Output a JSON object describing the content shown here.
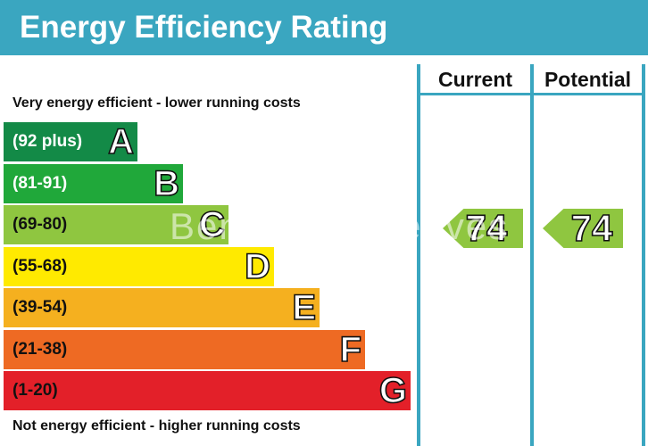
{
  "title": "Energy Efficiency Rating",
  "columns": {
    "current": "Current",
    "potential": "Potential"
  },
  "top_caption": "Very energy efficient - lower running costs",
  "bottom_caption": "Not energy efficient - higher running costs",
  "watermark": "Benham & Reeves",
  "chart_data": {
    "type": "bar",
    "categories": [
      "A",
      "B",
      "C",
      "D",
      "E",
      "F",
      "G"
    ],
    "ranges": [
      "(92 plus)",
      "(81-91)",
      "(69-80)",
      "(55-68)",
      "(39-54)",
      "(21-38)",
      "(1-20)"
    ],
    "colors": [
      "#138a47",
      "#20a83a",
      "#8fc640",
      "#ffea00",
      "#f5b01f",
      "#ee6a23",
      "#e32029"
    ],
    "current": {
      "value": 74,
      "band": "C"
    },
    "potential": {
      "value": 74,
      "band": "C"
    }
  }
}
